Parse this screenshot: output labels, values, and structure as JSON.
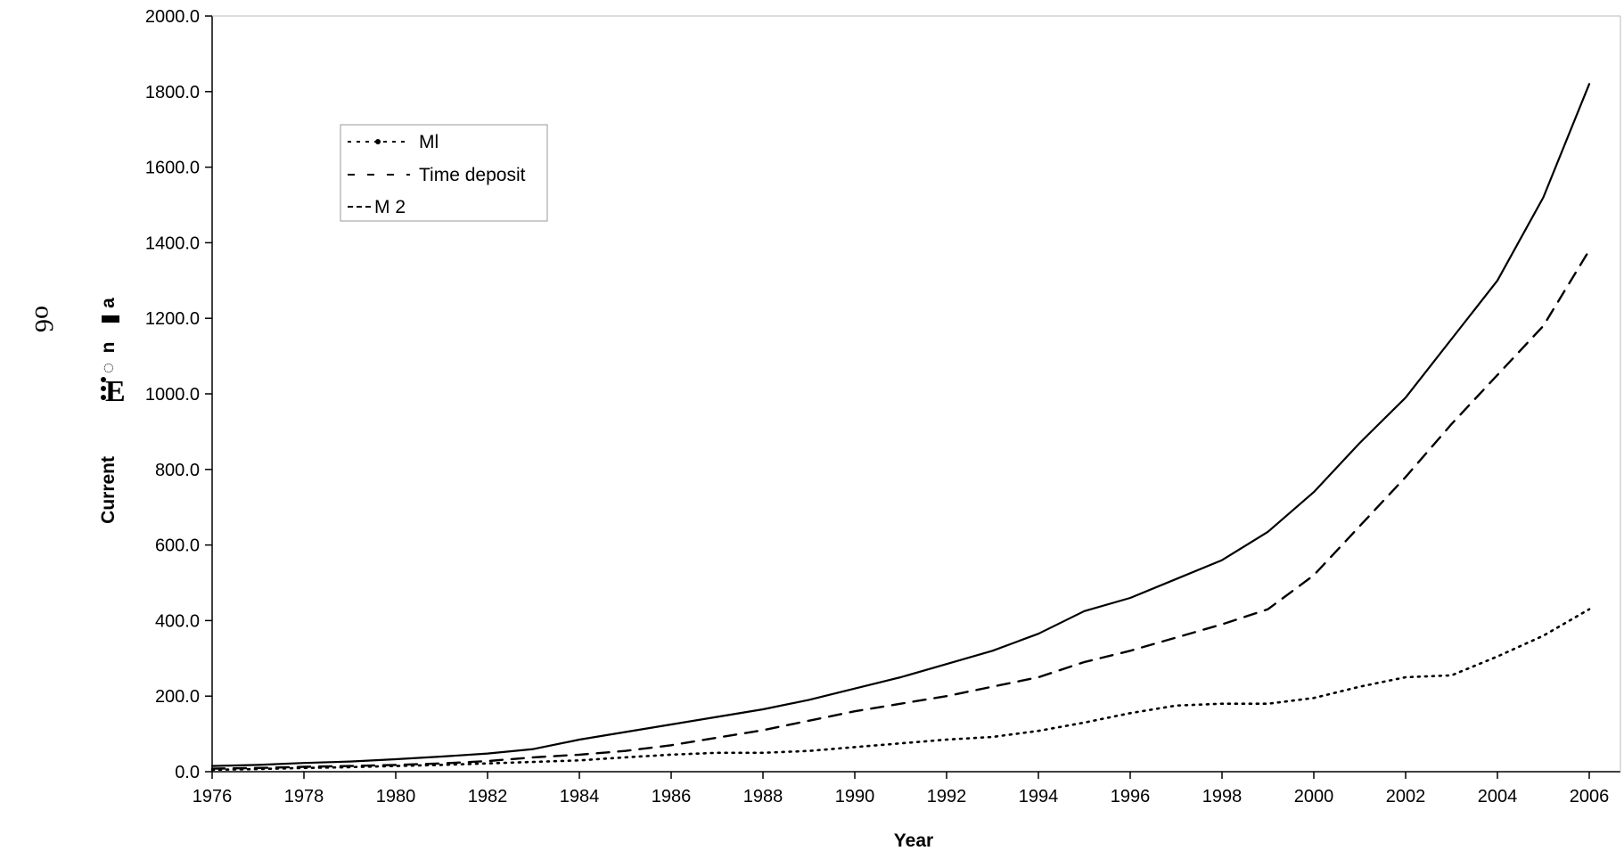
{
  "chart_data": {
    "type": "line",
    "title": "",
    "xlabel": "Year",
    "ylabel": "Current",
    "ylabel_artifacts": [
      "a",
      "n",
      "◌",
      "E"
    ],
    "side_artifact": "o6",
    "xlim": [
      1976,
      2006
    ],
    "ylim": [
      0,
      2000
    ],
    "x_ticks": [
      "1976",
      "1978",
      "1980",
      "1982",
      "1984",
      "1986",
      "1988",
      "1990",
      "1992",
      "1994",
      "1996",
      "1998",
      "2000",
      "2002",
      "2004",
      "2006"
    ],
    "y_ticks": [
      "0.0",
      "200.0",
      "400.0",
      "600.0",
      "800.0",
      "1000.0",
      "1200.0",
      "1400.0",
      "1600.0",
      "1800.0",
      "2000.0"
    ],
    "grid": false,
    "legend_position": "top-left",
    "x": [
      1976,
      1977,
      1978,
      1979,
      1980,
      1981,
      1982,
      1983,
      1984,
      1985,
      1986,
      1987,
      1988,
      1989,
      1990,
      1991,
      1992,
      1993,
      1994,
      1995,
      1996,
      1997,
      1998,
      1999,
      2000,
      2001,
      2002,
      2003,
      2004,
      2005,
      2006
    ],
    "series": [
      {
        "name": "Ml",
        "style": "dotted",
        "color": "#000000",
        "values": [
          5,
          7,
          10,
          12,
          15,
          18,
          22,
          26,
          30,
          38,
          45,
          50,
          50,
          55,
          65,
          75,
          85,
          92,
          108,
          130,
          155,
          175,
          180,
          180,
          195,
          225,
          250,
          255,
          305,
          360,
          430
        ]
      },
      {
        "name": "Time deposit",
        "style": "dashed",
        "color": "#000000",
        "values": [
          8,
          10,
          13,
          15,
          18,
          22,
          28,
          38,
          45,
          55,
          70,
          90,
          110,
          135,
          160,
          180,
          200,
          225,
          250,
          290,
          320,
          355,
          390,
          430,
          520,
          650,
          780,
          920,
          1050,
          1180,
          1380
        ]
      },
      {
        "name": "M 2",
        "style": "solid",
        "color": "#000000",
        "values": [
          15,
          18,
          23,
          27,
          33,
          40,
          48,
          60,
          85,
          105,
          125,
          145,
          165,
          190,
          220,
          250,
          285,
          320,
          365,
          425,
          460,
          510,
          560,
          635,
          740,
          870,
          990,
          1145,
          1300,
          1520,
          1820
        ]
      }
    ]
  }
}
